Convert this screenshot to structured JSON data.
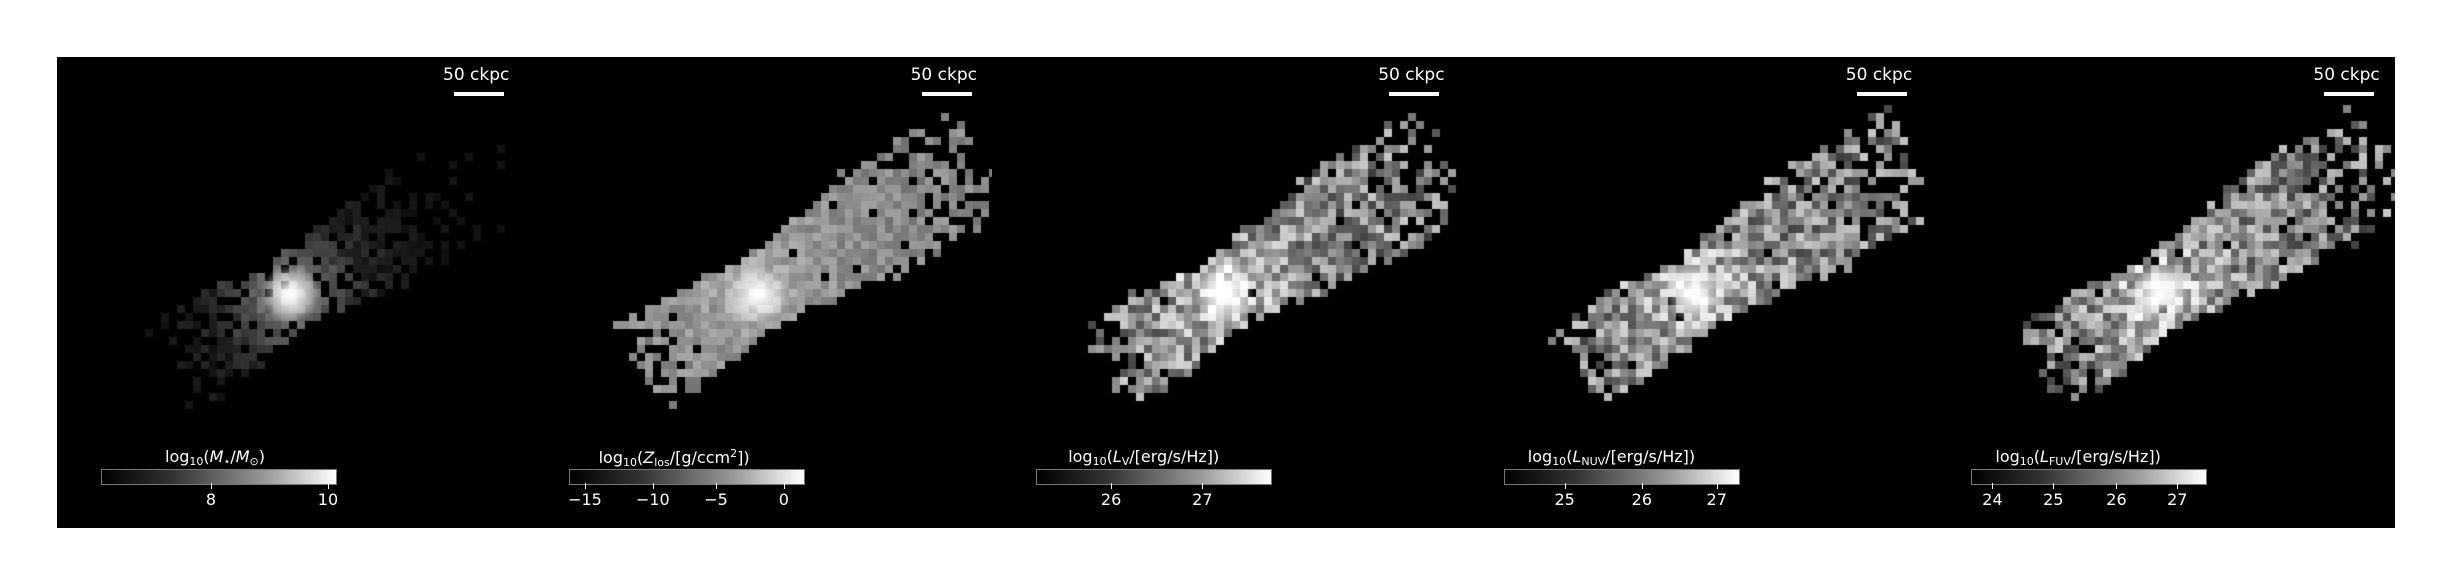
{
  "scalebar_label": "50 ckpc",
  "panels": [
    {
      "id": "mass",
      "colorbar": {
        "prefix": "log",
        "base": "10",
        "open": "(",
        "var": "M",
        "var_sub": "⋆",
        "slash": "/",
        "var2": "M",
        "var2_sub": "⊙",
        "close": ")",
        "ticks": [
          "8",
          "10"
        ],
        "tick_pos": [
          0.47,
          0.97
        ]
      }
    },
    {
      "id": "metal",
      "colorbar": {
        "prefix": "log",
        "base": "10",
        "open": "(",
        "var": "Z",
        "var_sub": "los",
        "unit": "/[g/ccm",
        "unit_sup": "2",
        "close": "])",
        "ticks": [
          "−15",
          "−10",
          "−5",
          "0"
        ],
        "tick_pos": [
          0.07,
          0.36,
          0.63,
          0.92
        ]
      }
    },
    {
      "id": "lv",
      "colorbar": {
        "prefix": "log",
        "base": "10",
        "open": "(",
        "var": "L",
        "var_sub": "V",
        "unit": "/[erg/s/Hz]",
        "close": ")",
        "ticks": [
          "26",
          "27"
        ],
        "tick_pos": [
          0.32,
          0.71
        ]
      }
    },
    {
      "id": "lnuv",
      "colorbar": {
        "prefix": "log",
        "base": "10",
        "open": "(",
        "var": "L",
        "var_sub": "NUV",
        "unit": "/[erg/s/Hz]",
        "close": ")",
        "ticks": [
          "25",
          "26",
          "27"
        ],
        "tick_pos": [
          0.26,
          0.59,
          0.91
        ]
      }
    },
    {
      "id": "lfuv",
      "colorbar": {
        "prefix": "log",
        "base": "10",
        "open": "(",
        "var": "L",
        "var_sub": "FUV",
        "unit": "/[erg/s/Hz]",
        "close": ")",
        "ticks": [
          "24",
          "25",
          "26",
          "27"
        ],
        "tick_pos": [
          0.09,
          0.35,
          0.62,
          0.88
        ]
      }
    }
  ]
}
